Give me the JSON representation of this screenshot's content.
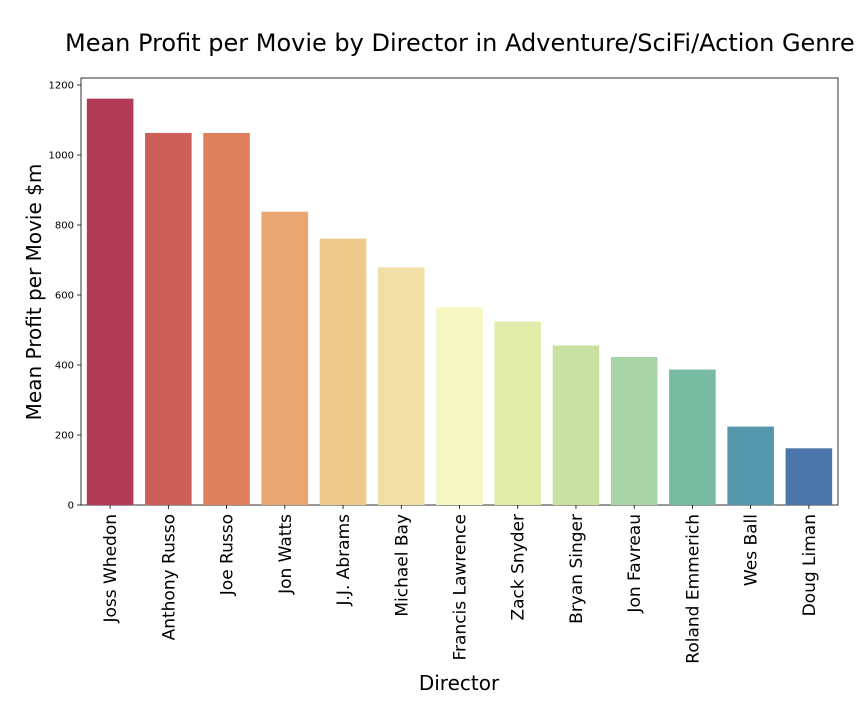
{
  "chart_data": {
    "type": "bar",
    "title": "Mean Profit per Movie by Director in Adventure/SciFi/Action Genre",
    "xlabel": "Director",
    "ylabel": "Mean Profit per Movie $m",
    "categories": [
      "Joss Whedon",
      "Anthony Russo",
      "Joe Russo",
      "Jon Watts",
      "J.J. Abrams",
      "Michael Bay",
      "Francis Lawrence",
      "Zack Snyder",
      "Bryan Singer",
      "Jon Favreau",
      "Roland Emmerich",
      "Wes Ball",
      "Doug Liman"
    ],
    "values": [
      1161,
      1063,
      1063,
      838,
      761,
      679,
      565,
      524,
      456,
      423,
      387,
      224,
      162
    ],
    "colors": [
      "#b23a55",
      "#cd5f5b",
      "#df815e",
      "#e8a673",
      "#edc98a",
      "#f1e0a6",
      "#f7f7c3",
      "#e1ecaa",
      "#c9e2a3",
      "#a7d3a7",
      "#78bba2",
      "#5598ab",
      "#4c76a9"
    ],
    "ylim": [
      0,
      1220
    ],
    "yticks": [
      0,
      200,
      400,
      600,
      800,
      1000,
      1200
    ],
    "grid": false,
    "legend": "none"
  }
}
